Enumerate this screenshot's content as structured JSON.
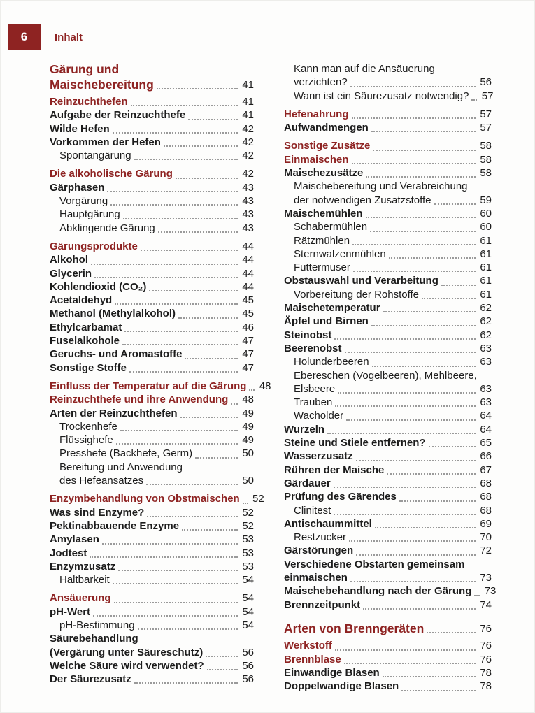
{
  "header": {
    "page_number": "6",
    "label": "Inhalt"
  },
  "colors": {
    "accent": "#8e2322",
    "text": "#1c1c1c",
    "leader": "#9a9a9a"
  },
  "toc": {
    "left": [
      {
        "style": "chapter",
        "lines": [
          "Gärung und",
          "Maischebereitung"
        ],
        "page": "41"
      },
      {
        "style": "section",
        "lines": [
          "Reinzuchthefen"
        ],
        "page": "41"
      },
      {
        "style": "item",
        "lines": [
          "Aufgabe der Reinzuchthefe"
        ],
        "page": "41"
      },
      {
        "style": "item",
        "lines": [
          "Wilde Hefen"
        ],
        "page": "42"
      },
      {
        "style": "item",
        "lines": [
          "Vorkommen der Hefen"
        ],
        "page": "42"
      },
      {
        "style": "sub",
        "lines": [
          "Spontangärung"
        ],
        "page": "42"
      },
      {
        "style": "section",
        "gap": true,
        "lines": [
          "Die alkoholische Gärung"
        ],
        "page": "42"
      },
      {
        "style": "item",
        "lines": [
          "Gärphasen"
        ],
        "page": "43"
      },
      {
        "style": "sub",
        "lines": [
          "Vorgärung"
        ],
        "page": "43"
      },
      {
        "style": "sub",
        "lines": [
          "Hauptgärung"
        ],
        "page": "43"
      },
      {
        "style": "sub",
        "lines": [
          "Abklingende Gärung"
        ],
        "page": "43"
      },
      {
        "style": "section",
        "gap": true,
        "lines": [
          "Gärungsprodukte"
        ],
        "page": "44"
      },
      {
        "style": "item",
        "lines": [
          "Alkohol"
        ],
        "page": "44"
      },
      {
        "style": "item",
        "lines": [
          "Glycerin"
        ],
        "page": "44"
      },
      {
        "style": "item",
        "lines": [
          "Kohlendioxid (CO₂)"
        ],
        "page": "44"
      },
      {
        "style": "item",
        "lines": [
          "Acetaldehyd"
        ],
        "page": "45"
      },
      {
        "style": "item",
        "lines": [
          "Methanol (Methylalkohol)"
        ],
        "page": "45"
      },
      {
        "style": "item",
        "lines": [
          "Ethylcarbamat"
        ],
        "page": "46"
      },
      {
        "style": "item",
        "lines": [
          "Fuselalkohole"
        ],
        "page": "47"
      },
      {
        "style": "item",
        "lines": [
          "Geruchs- und Aromastoffe"
        ],
        "page": "47"
      },
      {
        "style": "item",
        "lines": [
          "Sonstige Stoffe"
        ],
        "page": "47"
      },
      {
        "style": "section",
        "gap": true,
        "lines": [
          "Einfluss der Temperatur auf die Gärung"
        ],
        "page": "48"
      },
      {
        "style": "section",
        "lines": [
          "Reinzuchthefe und ihre Anwendung"
        ],
        "page": "48"
      },
      {
        "style": "item",
        "lines": [
          "Arten der Reinzuchthefen"
        ],
        "page": "49"
      },
      {
        "style": "sub",
        "lines": [
          "Trockenhefe"
        ],
        "page": "49"
      },
      {
        "style": "sub",
        "lines": [
          "Flüssighefe"
        ],
        "page": "49"
      },
      {
        "style": "sub",
        "lines": [
          "Presshefe (Backhefe, Germ)"
        ],
        "page": "50"
      },
      {
        "style": "sub",
        "lines": [
          "Bereitung und Anwendung",
          "des Hefeansatzes"
        ],
        "page": "50"
      },
      {
        "style": "section",
        "gap": true,
        "lines": [
          "Enzymbehandlung von Obstmaischen"
        ],
        "page": "52"
      },
      {
        "style": "item",
        "lines": [
          "Was sind Enzyme?"
        ],
        "page": "52"
      },
      {
        "style": "item",
        "lines": [
          "Pektinabbauende Enzyme"
        ],
        "page": "52"
      },
      {
        "style": "item",
        "lines": [
          "Amylasen"
        ],
        "page": "53"
      },
      {
        "style": "item",
        "lines": [
          "Jodtest"
        ],
        "page": "53"
      },
      {
        "style": "item",
        "lines": [
          "Enzymzusatz"
        ],
        "page": "53"
      },
      {
        "style": "sub",
        "lines": [
          "Haltbarkeit"
        ],
        "page": "54"
      },
      {
        "style": "section",
        "gap": true,
        "lines": [
          "Ansäuerung"
        ],
        "page": "54"
      },
      {
        "style": "item",
        "lines": [
          "pH-Wert"
        ],
        "page": "54"
      },
      {
        "style": "sub",
        "lines": [
          "pH-Bestimmung"
        ],
        "page": "54"
      },
      {
        "style": "item",
        "lines": [
          "Säurebehandlung",
          "(Vergärung unter Säureschutz)"
        ],
        "page": "56"
      },
      {
        "style": "item",
        "lines": [
          "Welche Säure wird verwendet?"
        ],
        "page": "56"
      },
      {
        "style": "item",
        "lines": [
          "Der Säurezusatz"
        ],
        "page": "56"
      }
    ],
    "right": [
      {
        "style": "sub",
        "lines": [
          "Kann man auf die Ansäuerung",
          "verzichten?"
        ],
        "page": "56"
      },
      {
        "style": "sub",
        "lines": [
          "Wann ist ein Säurezusatz notwendig?"
        ],
        "page": "57"
      },
      {
        "style": "section",
        "gap": true,
        "lines": [
          "Hefenahrung"
        ],
        "page": "57"
      },
      {
        "style": "item",
        "lines": [
          "Aufwandmengen"
        ],
        "page": "57"
      },
      {
        "style": "section",
        "gap": true,
        "lines": [
          "Sonstige Zusätze"
        ],
        "page": "58"
      },
      {
        "style": "section",
        "lines": [
          "Einmaischen"
        ],
        "page": "58"
      },
      {
        "style": "item",
        "lines": [
          "Maischezusätze"
        ],
        "page": "58"
      },
      {
        "style": "sub",
        "lines": [
          "Maischebereitung und Verabreichung",
          "der notwendigen Zusatzstoffe"
        ],
        "page": "59"
      },
      {
        "style": "item",
        "lines": [
          "Maischemühlen"
        ],
        "page": "60"
      },
      {
        "style": "sub",
        "lines": [
          "Schabermühlen"
        ],
        "page": "60"
      },
      {
        "style": "sub",
        "lines": [
          "Rätzmühlen"
        ],
        "page": "61"
      },
      {
        "style": "sub",
        "lines": [
          "Sternwalzenmühlen"
        ],
        "page": "61"
      },
      {
        "style": "sub",
        "lines": [
          "Futtermuser"
        ],
        "page": "61"
      },
      {
        "style": "item",
        "lines": [
          "Obstauswahl und Verarbeitung"
        ],
        "page": "61"
      },
      {
        "style": "sub",
        "lines": [
          "Vorbereitung der Rohstoffe"
        ],
        "page": "61"
      },
      {
        "style": "item",
        "lines": [
          "Maischetemperatur"
        ],
        "page": "62"
      },
      {
        "style": "item",
        "lines": [
          "Äpfel und Birnen"
        ],
        "page": "62"
      },
      {
        "style": "item",
        "lines": [
          "Steinobst"
        ],
        "page": "62"
      },
      {
        "style": "item",
        "lines": [
          "Beerenobst"
        ],
        "page": "63"
      },
      {
        "style": "sub",
        "lines": [
          "Holunderbeeren"
        ],
        "page": "63"
      },
      {
        "style": "sub",
        "lines": [
          "Ebereschen (Vogelbeeren), Mehlbeere,",
          "Elsbeere"
        ],
        "page": "63"
      },
      {
        "style": "sub",
        "lines": [
          "Trauben"
        ],
        "page": "63"
      },
      {
        "style": "sub",
        "lines": [
          "Wacholder"
        ],
        "page": "64"
      },
      {
        "style": "item",
        "lines": [
          "Wurzeln"
        ],
        "page": "64"
      },
      {
        "style": "item",
        "lines": [
          "Steine und Stiele entfernen?"
        ],
        "page": "65"
      },
      {
        "style": "item",
        "lines": [
          "Wasserzusatz"
        ],
        "page": "66"
      },
      {
        "style": "item",
        "lines": [
          "Rühren der Maische"
        ],
        "page": "67"
      },
      {
        "style": "item",
        "lines": [
          "Gärdauer"
        ],
        "page": "68"
      },
      {
        "style": "item",
        "lines": [
          "Prüfung des Gärendes"
        ],
        "page": "68"
      },
      {
        "style": "sub",
        "lines": [
          "Clinitest"
        ],
        "page": "68"
      },
      {
        "style": "item",
        "lines": [
          "Antischaummittel"
        ],
        "page": "69"
      },
      {
        "style": "sub",
        "lines": [
          "Restzucker"
        ],
        "page": "70"
      },
      {
        "style": "item",
        "lines": [
          "Gärstörungen"
        ],
        "page": "72"
      },
      {
        "style": "item",
        "lines": [
          "Verschiedene Obstarten gemeinsam",
          "einmaischen"
        ],
        "page": "73"
      },
      {
        "style": "item",
        "lines": [
          "Maischebehandlung nach der Gärung"
        ],
        "page": "73"
      },
      {
        "style": "item",
        "lines": [
          "Brennzeitpunkt"
        ],
        "page": "74"
      },
      {
        "style": "chapter",
        "gap": true,
        "lines": [
          "Arten von Brenngeräten"
        ],
        "page": "76"
      },
      {
        "style": "section",
        "lines": [
          "Werkstoff"
        ],
        "page": "76"
      },
      {
        "style": "section",
        "lines": [
          "Brennblase"
        ],
        "page": "76"
      },
      {
        "style": "item",
        "lines": [
          "Einwandige Blasen"
        ],
        "page": "78"
      },
      {
        "style": "item",
        "lines": [
          "Doppelwandige Blasen"
        ],
        "page": "78"
      }
    ]
  }
}
